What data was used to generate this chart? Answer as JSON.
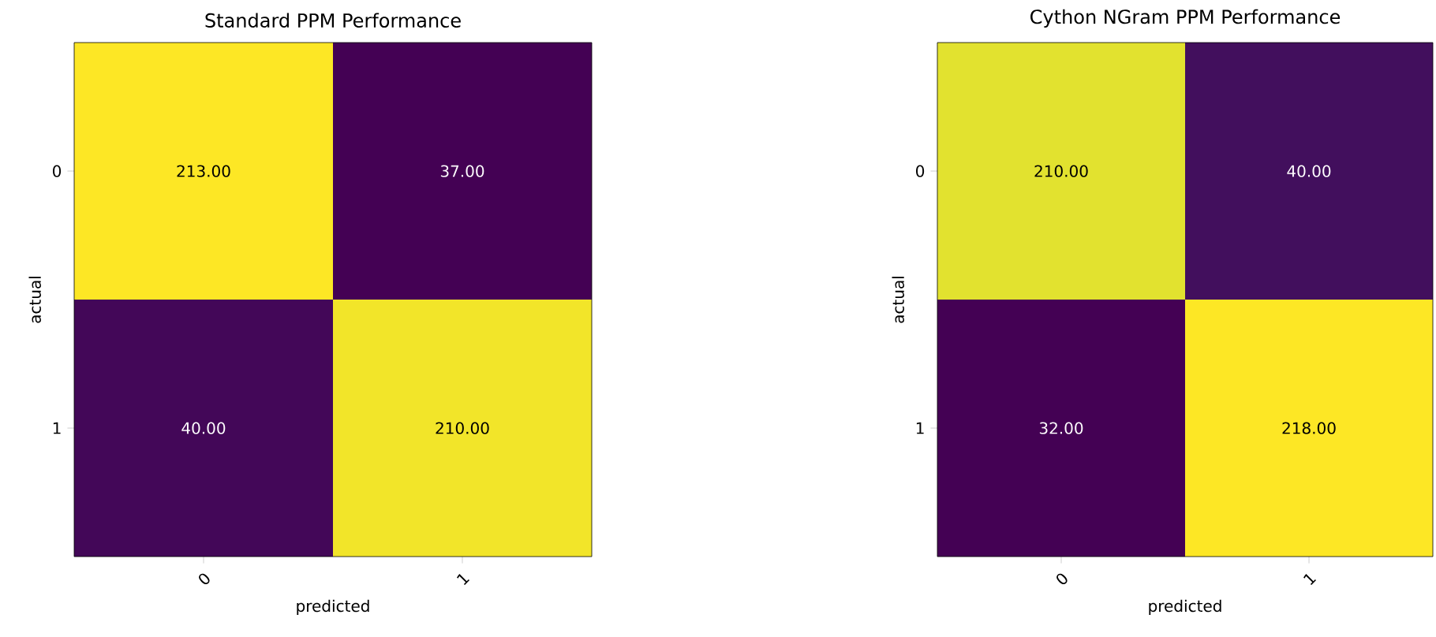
{
  "chart_data": [
    {
      "type": "heatmap",
      "title": "Standard PPM Performance",
      "xlabel": "predicted",
      "ylabel": "actual",
      "categories": [
        "0",
        "1"
      ],
      "y_categories": [
        "0",
        "1"
      ],
      "cells": [
        [
          213,
          37
        ],
        [
          40,
          210
        ]
      ],
      "cell_labels": [
        [
          "213.00",
          "37.00"
        ],
        [
          "40.00",
          "210.00"
        ]
      ]
    },
    {
      "type": "heatmap",
      "title": "Cython NGram PPM Performance",
      "xlabel": "predicted",
      "ylabel": "actual",
      "categories": [
        "0",
        "1"
      ],
      "y_categories": [
        "0",
        "1"
      ],
      "cells": [
        [
          210,
          40
        ],
        [
          32,
          218
        ]
      ],
      "cell_labels": [
        [
          "210.00",
          "40.00"
        ],
        [
          "32.00",
          "218.00"
        ]
      ]
    }
  ]
}
